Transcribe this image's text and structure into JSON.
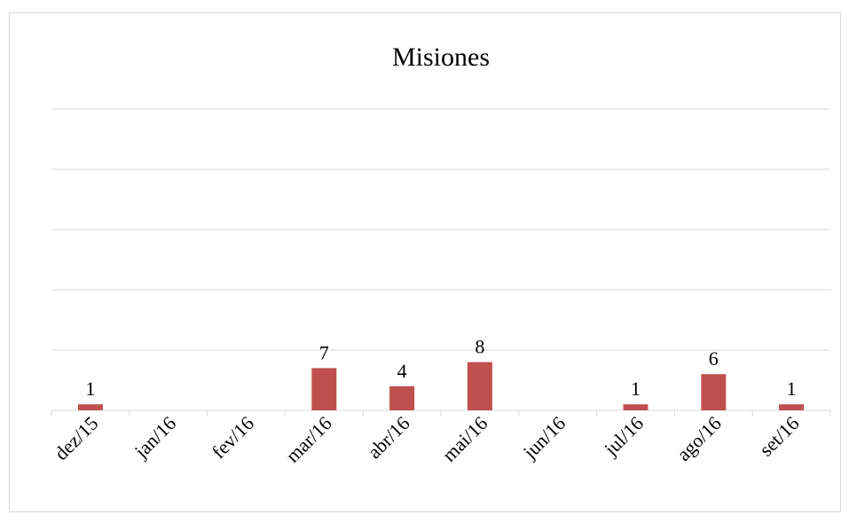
{
  "chart_data": {
    "type": "bar",
    "title": "Misiones",
    "categories": [
      "dez/15",
      "jan/16",
      "fev/16",
      "mar/16",
      "abr/16",
      "mai/16",
      "jun/16",
      "jul/16",
      "ago/16",
      "set/16"
    ],
    "values": [
      1,
      0,
      0,
      7,
      4,
      8,
      0,
      1,
      6,
      1
    ],
    "value_labels": [
      "1",
      null,
      null,
      "7",
      "4",
      "8",
      null,
      "1",
      "6",
      "1"
    ],
    "color": "#c0504d",
    "ylim": [
      0,
      50
    ],
    "yticks": [
      0,
      10,
      20,
      30,
      40,
      50
    ],
    "grid": true
  }
}
